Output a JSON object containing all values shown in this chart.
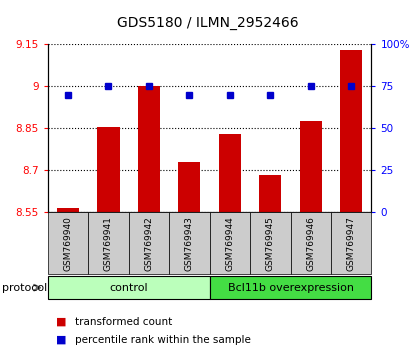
{
  "title": "GDS5180 / ILMN_2952466",
  "samples": [
    "GSM769940",
    "GSM769941",
    "GSM769942",
    "GSM769943",
    "GSM769944",
    "GSM769945",
    "GSM769946",
    "GSM769947"
  ],
  "transformed_count": [
    8.565,
    8.855,
    9.0,
    8.73,
    8.83,
    8.685,
    8.875,
    9.13
  ],
  "percentile_rank": [
    70,
    75,
    75,
    70,
    70,
    70,
    75,
    75
  ],
  "ylim_left": [
    8.55,
    9.15
  ],
  "ylim_right": [
    0,
    100
  ],
  "yticks_left": [
    8.55,
    8.7,
    8.85,
    9.0,
    9.15
  ],
  "yticks_right": [
    0,
    25,
    50,
    75,
    100
  ],
  "ytick_labels_left": [
    "8.55",
    "8.7",
    "8.85",
    "9",
    "9.15"
  ],
  "ytick_labels_right": [
    "0",
    "25",
    "50",
    "75",
    "100%"
  ],
  "bar_color": "#cc0000",
  "dot_color": "#0000cc",
  "control_color": "#bbffbb",
  "overexp_color": "#44dd44",
  "control_label": "control",
  "overexp_label": "Bcl11b overexpression",
  "protocol_label": "protocol",
  "legend_bar_label": "transformed count",
  "legend_dot_label": "percentile rank within the sample",
  "control_samples": 4,
  "overexp_samples": 4,
  "label_area_color": "#cccccc",
  "n_samples": 8
}
